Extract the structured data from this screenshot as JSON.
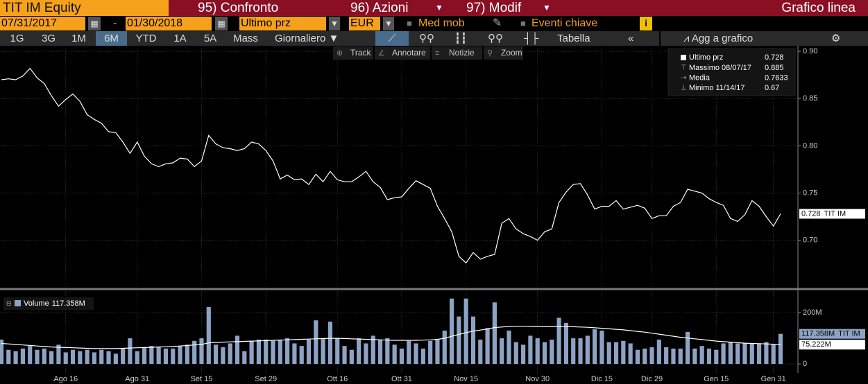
{
  "header": {
    "security": "TIT IM Equity",
    "menu": [
      "95) Confronto",
      "96) Azioni",
      "97) Modif"
    ],
    "view": "Grafico linea"
  },
  "controls": {
    "start": "07/31/2017",
    "separator": "-",
    "end": "01/30/2018",
    "field": "Ultimo prz",
    "currency": "EUR",
    "moving_avg": "Med mob",
    "events": "Eventi chiave",
    "info": "i"
  },
  "periods": [
    "1G",
    "3G",
    "1M",
    "6M",
    "YTD",
    "1A",
    "5A",
    "Mass"
  ],
  "active_period": 3,
  "frequency": "Giornaliero",
  "table": "Tabella",
  "add": "Agg a grafico",
  "tools": [
    "Track",
    "Annotare",
    "Notizie",
    "Zoom"
  ],
  "chart_data": [
    {
      "type": "line",
      "series": [
        {
          "name": "Ultimo prz",
          "color": "#ffffff",
          "values": [
            0.87,
            0.871,
            0.87,
            0.874,
            0.882,
            0.872,
            0.866,
            0.853,
            0.842,
            0.849,
            0.855,
            0.847,
            0.833,
            0.828,
            0.824,
            0.815,
            0.814,
            0.804,
            0.792,
            0.804,
            0.789,
            0.781,
            0.778,
            0.781,
            0.782,
            0.787,
            0.786,
            0.778,
            0.784,
            0.811,
            0.802,
            0.798,
            0.797,
            0.795,
            0.797,
            0.804,
            0.802,
            0.795,
            0.784,
            0.765,
            0.769,
            0.764,
            0.765,
            0.759,
            0.77,
            0.762,
            0.773,
            0.764,
            0.762,
            0.762,
            0.767,
            0.773,
            0.762,
            0.756,
            0.743,
            0.745,
            0.746,
            0.755,
            0.763,
            0.759,
            0.755,
            0.736,
            0.723,
            0.709,
            0.683,
            0.676,
            0.687,
            0.68,
            0.683,
            0.685,
            0.718,
            0.723,
            0.712,
            0.707,
            0.704,
            0.7,
            0.709,
            0.712,
            0.74,
            0.751,
            0.759,
            0.76,
            0.748,
            0.733,
            0.736,
            0.736,
            0.742,
            0.733,
            0.735,
            0.737,
            0.734,
            0.723,
            0.726,
            0.726,
            0.736,
            0.74,
            0.754,
            0.752,
            0.75,
            0.744,
            0.74,
            0.737,
            0.723,
            0.72,
            0.727,
            0.742,
            0.736,
            0.725,
            0.715,
            0.728
          ]
        }
      ],
      "ylim": [
        0.652,
        0.906
      ],
      "yticks": [
        {
          "value": 0.7,
          "label": "0.70"
        },
        0.75,
        {
          "value": 0.8,
          "label": "0.80"
        },
        0.85,
        {
          "value": 0.9,
          "label": "0.90"
        }
      ],
      "grid": true,
      "legend": "top-right",
      "end_tag": "TIT IM",
      "stats": [
        {
          "label": "Massimo 08/07/17",
          "value": 0.885
        },
        {
          "label": "Media",
          "value": 0.7633
        },
        {
          "label": "Minimo 11/14/17",
          "value": 0.67
        }
      ]
    },
    {
      "type": "bar",
      "categories": [
        null,
        null,
        null,
        null,
        null,
        null,
        null,
        null,
        null,
        "Ago 16",
        null,
        null,
        null,
        null,
        null,
        null,
        null,
        null,
        null,
        "Ago 31",
        null,
        null,
        null,
        null,
        null,
        null,
        null,
        null,
        "Set 15",
        null,
        null,
        null,
        null,
        null,
        null,
        null,
        null,
        "Set 29",
        null,
        null,
        null,
        null,
        null,
        null,
        null,
        null,
        null,
        "Ott 16",
        null,
        null,
        null,
        null,
        null,
        null,
        null,
        null,
        "Ott 31",
        null,
        null,
        null,
        null,
        null,
        null,
        null,
        null,
        "Nov 15",
        null,
        null,
        null,
        null,
        null,
        null,
        null,
        null,
        null,
        "Nov 30",
        null,
        null,
        null,
        null,
        null,
        null,
        null,
        null,
        "Dic 15",
        null,
        null,
        null,
        null,
        null,
        null,
        "Dic 29",
        null,
        null,
        null,
        null,
        null,
        null,
        null,
        null,
        "Gen 15",
        null,
        null,
        null,
        null,
        null,
        null,
        null,
        "Gen 31",
        null
      ],
      "series": [
        {
          "name": "Volume",
          "color": "#8da3c6",
          "last_label": "117.358M",
          "values": [
            95,
            55,
            50,
            60,
            70,
            55,
            60,
            50,
            75,
            45,
            55,
            50,
            55,
            45,
            55,
            50,
            40,
            60,
            100,
            50,
            65,
            70,
            65,
            60,
            60,
            70,
            75,
            90,
            100,
            222,
            75,
            65,
            80,
            110,
            50,
            90,
            95,
            95,
            90,
            95,
            100,
            80,
            70,
            95,
            170,
            100,
            165,
            100,
            70,
            55,
            100,
            80,
            110,
            95,
            100,
            75,
            60,
            90,
            80,
            60,
            90,
            95,
            130,
            255,
            185,
            255,
            185,
            95,
            140,
            240,
            100,
            130,
            85,
            75,
            110,
            100,
            85,
            95,
            180,
            160,
            100,
            100,
            110,
            135,
            130,
            85,
            85,
            90,
            80,
            55,
            60,
            65,
            95,
            65,
            60,
            60,
            125,
            60,
            70,
            60,
            55,
            80,
            85,
            80,
            80,
            80,
            80,
            85,
            75,
            117.358
          ]
        },
        {
          "type": "line",
          "color": "#ffffff",
          "last_label": "75.222M",
          "values": [
            80,
            78,
            76,
            74,
            72,
            70,
            68,
            66,
            65,
            64,
            63,
            62,
            61,
            60,
            60,
            60,
            60,
            61,
            62,
            63,
            64,
            65,
            66,
            67,
            68,
            70,
            72,
            74,
            76,
            82,
            84,
            85,
            86,
            87,
            88,
            89,
            90,
            91,
            92,
            93,
            94,
            95,
            96,
            97,
            98,
            99,
            100,
            100,
            99,
            98,
            97,
            96,
            95,
            94,
            93,
            92,
            92,
            92,
            92,
            93,
            94,
            96,
            100,
            108,
            115,
            122,
            128,
            132,
            136,
            142,
            144,
            146,
            147,
            147,
            146,
            146,
            145,
            145,
            146,
            146,
            145,
            144,
            143,
            141,
            139,
            137,
            135,
            133,
            130,
            127,
            124,
            120,
            116,
            112,
            108,
            104,
            101,
            98,
            95,
            92,
            89,
            87,
            85,
            83,
            81,
            80,
            79,
            78,
            77,
            75.222
          ]
        }
      ],
      "ylim": [
        -35,
        284
      ],
      "yticks": [
        0,
        {
          "value": 200,
          "label": "200M"
        }
      ],
      "grid": true,
      "legend": "top-left",
      "end_tag": "TIT IM"
    }
  ]
}
